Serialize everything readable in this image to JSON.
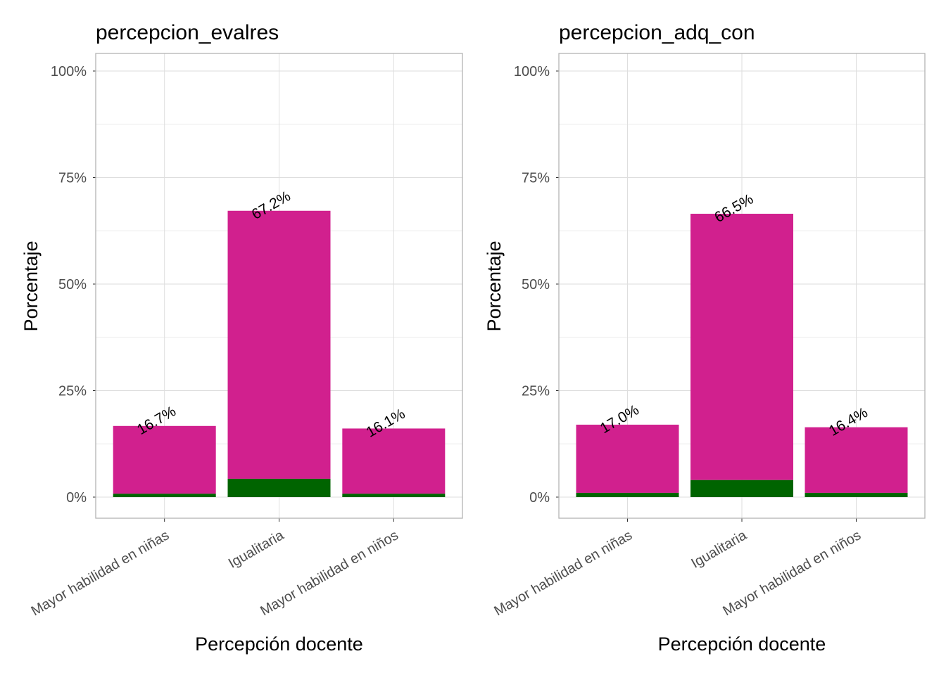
{
  "chart_data": [
    {
      "type": "bar",
      "stacked": true,
      "title": "percepcion_evalres",
      "xlabel": "Percepción docente",
      "ylabel": "Porcentaje",
      "categories": [
        "Mayor habilidad en niñas",
        "Igualitaria",
        "Mayor habilidad en niños"
      ],
      "series": [
        {
          "name": "magenta",
          "color": "#D1208E",
          "values": [
            15.9,
            62.9,
            15.3
          ]
        },
        {
          "name": "green",
          "color": "#006400",
          "values": [
            0.8,
            4.3,
            0.8
          ]
        }
      ],
      "totals": [
        16.7,
        67.2,
        16.1
      ],
      "data_labels": [
        "16.7%",
        "67.2%",
        "16.1%"
      ],
      "yticks": [
        "0%",
        "25%",
        "50%",
        "75%",
        "100%"
      ],
      "ylim": [
        -5,
        104
      ],
      "grid": true
    },
    {
      "type": "bar",
      "stacked": true,
      "title": "percepcion_adq_con",
      "xlabel": "Percepción docente",
      "ylabel": "Porcentaje",
      "categories": [
        "Mayor habilidad en niñas",
        "Igualitaria",
        "Mayor habilidad en niños"
      ],
      "series": [
        {
          "name": "magenta",
          "color": "#D1208E",
          "values": [
            16.0,
            62.5,
            15.4
          ]
        },
        {
          "name": "green",
          "color": "#006400",
          "values": [
            1.0,
            4.0,
            1.0
          ]
        }
      ],
      "totals": [
        17.0,
        66.5,
        16.4
      ],
      "data_labels": [
        "17.0%",
        "66.5%",
        "16.4%"
      ],
      "yticks": [
        "0%",
        "25%",
        "50%",
        "75%",
        "100%"
      ],
      "ylim": [
        -5,
        104
      ],
      "grid": true
    }
  ]
}
